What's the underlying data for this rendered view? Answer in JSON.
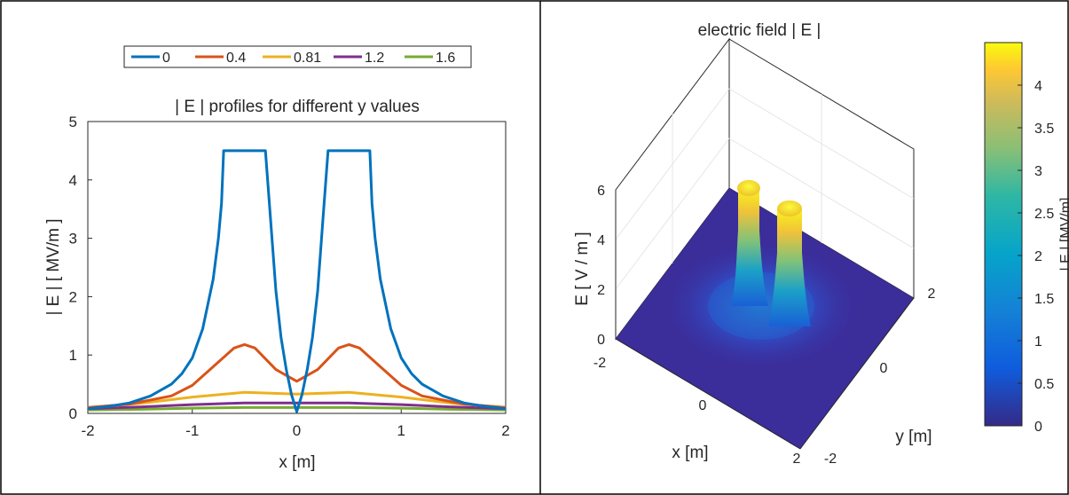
{
  "chart_data": [
    {
      "type": "line",
      "title": "| E | profiles for different y values",
      "xlabel": "x  [m]",
      "ylabel": "| E |  [ MV/m ]",
      "xlim": [
        -2,
        2
      ],
      "ylim": [
        0,
        5
      ],
      "xticks": [
        "-2",
        "-1",
        "0",
        "1",
        "2"
      ],
      "xtick_values": [
        -2,
        -1,
        0,
        1,
        2
      ],
      "yticks": [
        "0",
        "1",
        "2",
        "3",
        "4",
        "5"
      ],
      "ytick_values": [
        0,
        1,
        2,
        3,
        4,
        5
      ],
      "legend_position": "top",
      "series": [
        {
          "name": "0",
          "color": "#0072bd",
          "x": [
            -2,
            -1.8,
            -1.6,
            -1.4,
            -1.2,
            -1.1,
            -1.0,
            -0.9,
            -0.8,
            -0.75,
            -0.72,
            -0.7,
            -0.7,
            -0.5,
            -0.3,
            -0.3,
            -0.25,
            -0.2,
            -0.15,
            -0.1,
            -0.05,
            0,
            0.05,
            0.1,
            0.15,
            0.2,
            0.25,
            0.3,
            0.3,
            0.5,
            0.7,
            0.7,
            0.72,
            0.75,
            0.8,
            0.9,
            1.0,
            1.1,
            1.2,
            1.4,
            1.6,
            1.8,
            2
          ],
          "y": [
            0.08,
            0.12,
            0.18,
            0.3,
            0.5,
            0.68,
            0.95,
            1.45,
            2.3,
            3.0,
            3.6,
            4.5,
            4.5,
            4.5,
            4.5,
            4.5,
            3.3,
            2.1,
            1.3,
            0.75,
            0.32,
            0.03,
            0.32,
            0.75,
            1.3,
            2.1,
            3.3,
            4.5,
            4.5,
            4.5,
            4.5,
            4.5,
            3.6,
            3.0,
            2.3,
            1.45,
            0.95,
            0.68,
            0.5,
            0.3,
            0.18,
            0.12,
            0.08
          ]
        },
        {
          "name": "0.4",
          "color": "#d95319",
          "x": [
            -2,
            -1.6,
            -1.2,
            -1.0,
            -0.8,
            -0.6,
            -0.5,
            -0.4,
            -0.2,
            0,
            0.2,
            0.4,
            0.5,
            0.6,
            0.8,
            1.0,
            1.2,
            1.6,
            2
          ],
          "y": [
            0.1,
            0.16,
            0.3,
            0.48,
            0.8,
            1.12,
            1.18,
            1.12,
            0.75,
            0.55,
            0.75,
            1.12,
            1.18,
            1.12,
            0.8,
            0.48,
            0.3,
            0.16,
            0.1
          ]
        },
        {
          "name": "0.81",
          "color": "#edb120",
          "x": [
            -2,
            -1.5,
            -1.0,
            -0.5,
            0,
            0.5,
            1.0,
            1.5,
            2
          ],
          "y": [
            0.1,
            0.17,
            0.28,
            0.36,
            0.33,
            0.36,
            0.28,
            0.17,
            0.1
          ]
        },
        {
          "name": "1.2",
          "color": "#7e2f8e",
          "x": [
            -2,
            -1.5,
            -1.0,
            -0.5,
            0,
            0.5,
            1.0,
            1.5,
            2
          ],
          "y": [
            0.08,
            0.11,
            0.15,
            0.18,
            0.18,
            0.18,
            0.15,
            0.11,
            0.08
          ]
        },
        {
          "name": "1.6",
          "color": "#77ac30",
          "x": [
            -2,
            -1.5,
            -1.0,
            -0.5,
            0,
            0.5,
            1.0,
            1.5,
            2
          ],
          "y": [
            0.06,
            0.07,
            0.09,
            0.1,
            0.1,
            0.1,
            0.09,
            0.07,
            0.06
          ]
        }
      ]
    },
    {
      "type": "surface",
      "title": "electric field | E |",
      "xlabel": "x  [m]",
      "ylabel": "y  [m]",
      "zlabel": "E  [ V / m ]",
      "xticks": [
        "-2",
        "0",
        "2"
      ],
      "yticks": [
        "-2",
        "0",
        "2"
      ],
      "zticks": [
        "0",
        "2",
        "4",
        "6"
      ],
      "zlim": [
        0,
        6
      ],
      "colormap": "parula",
      "colorbar": {
        "label": "| E |   [MV/m]",
        "ticks": [
          "0",
          "0.5",
          "1",
          "1.5",
          "2",
          "2.5",
          "3",
          "3.5",
          "4"
        ],
        "tick_values": [
          0,
          0.5,
          1,
          1.5,
          2,
          2.5,
          3,
          3.5,
          4
        ],
        "range": [
          0,
          4.5
        ]
      },
      "peaks": [
        {
          "x": -0.5,
          "y": 0,
          "value": 4.5
        },
        {
          "x": 0.5,
          "y": 0,
          "value": 4.5
        }
      ]
    }
  ]
}
